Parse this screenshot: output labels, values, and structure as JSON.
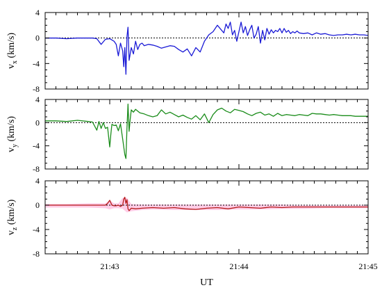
{
  "chart_data": [
    {
      "type": "line",
      "panel": "vx",
      "ylabel_main": "v",
      "ylabel_sub": "x",
      "ylabel_unit": " (km/s)",
      "ylim": [
        -8,
        4
      ],
      "yticks": [
        4,
        0,
        -4,
        -8
      ],
      "xlim": [
        0,
        150
      ],
      "xticks": [
        30,
        90,
        150
      ],
      "xticklabels": [
        "21:43",
        "21:44",
        "21:45"
      ],
      "show_xticklabels": false,
      "zero_line": true,
      "series": [
        {
          "color": "#1a1ad6",
          "x": [
            0,
            5,
            10,
            15,
            20,
            22,
            24,
            26,
            28,
            30,
            32,
            33,
            34,
            35,
            36,
            36.5,
            37,
            37.5,
            38,
            38.5,
            39,
            40,
            41,
            42,
            43,
            44,
            45,
            46,
            48,
            50,
            52,
            54,
            56,
            58,
            60,
            62,
            64,
            66,
            68,
            70,
            72,
            74,
            76,
            78,
            80,
            82,
            83,
            84,
            85,
            86,
            87,
            88,
            89,
            90,
            91,
            92,
            93,
            94,
            95,
            96,
            97,
            98,
            99,
            100,
            101,
            102,
            103,
            104,
            105,
            106,
            107,
            108,
            109,
            110,
            111,
            112,
            113,
            114,
            115,
            116,
            117,
            118,
            120,
            122,
            124,
            126,
            128,
            130,
            132,
            134,
            136,
            138,
            140,
            142,
            144,
            146,
            148,
            150
          ],
          "y": [
            0,
            0,
            -0.1,
            0,
            0,
            0,
            -0.1,
            -1,
            -0.2,
            -0.1,
            -0.5,
            -1,
            -2.8,
            -0.8,
            -2,
            -4.5,
            -1.5,
            -5.7,
            0.2,
            1.7,
            -3.5,
            -1.5,
            -2.5,
            -0.5,
            -1.8,
            -1,
            -0.8,
            -1.2,
            -1,
            -1.1,
            -1.3,
            -1.6,
            -1.4,
            -1.2,
            -1.3,
            -1.8,
            -2.2,
            -1.7,
            -2.8,
            -1.5,
            -2.2,
            -0.5,
            0.5,
            1,
            2,
            1.2,
            0.8,
            2.2,
            1.5,
            2.5,
            0.5,
            1.2,
            -0.5,
            1,
            2.5,
            0.8,
            1.8,
            0.4,
            1.3,
            2,
            0,
            0.6,
            1.8,
            -0.8,
            1.2,
            -0.3,
            1.5,
            0.6,
            1.3,
            0.8,
            1.2,
            1,
            1.5,
            0.8,
            1.5,
            0.9,
            1.2,
            0.7,
            1,
            0.8,
            1.1,
            0.8,
            0.7,
            0.8,
            0.5,
            0.8,
            0.6,
            0.7,
            0.5,
            0.4,
            0.5,
            0.5,
            0.6,
            0.5,
            0.6,
            0.5,
            0.5,
            0.4
          ]
        }
      ]
    },
    {
      "type": "line",
      "panel": "vy",
      "ylabel_main": "v",
      "ylabel_sub": "y",
      "ylabel_unit": " (km/s)",
      "ylim": [
        -8,
        4
      ],
      "yticks": [
        4,
        0,
        -4,
        -8
      ],
      "xlim": [
        0,
        150
      ],
      "xticks": [
        30,
        90,
        150
      ],
      "xticklabels": [
        "21:43",
        "21:44",
        "21:45"
      ],
      "show_xticklabels": false,
      "zero_line": true,
      "series": [
        {
          "color": "#1a8c1a",
          "x": [
            0,
            5,
            10,
            15,
            20,
            22,
            24,
            25,
            26,
            27,
            28,
            29,
            30,
            30.5,
            31,
            32,
            33,
            34,
            35,
            36,
            37,
            37.5,
            38,
            38.5,
            39,
            39.5,
            40,
            41,
            42,
            44,
            46,
            48,
            50,
            52,
            54,
            56,
            58,
            60,
            62,
            64,
            66,
            68,
            70,
            72,
            74,
            76,
            78,
            80,
            82,
            84,
            86,
            88,
            90,
            92,
            94,
            96,
            98,
            100,
            102,
            104,
            106,
            108,
            110,
            112,
            114,
            116,
            118,
            120,
            122,
            124,
            126,
            128,
            130,
            132,
            134,
            136,
            138,
            140,
            142,
            144,
            146,
            148,
            150
          ],
          "y": [
            0.3,
            0.3,
            0.2,
            0.4,
            0.2,
            0.1,
            -1.3,
            0.2,
            -1,
            0,
            -1,
            -0.8,
            -4.2,
            -2,
            -0.3,
            -0.5,
            -0.4,
            -1.4,
            -0.2,
            -2.8,
            -5.5,
            -6.2,
            -1,
            3.2,
            -1.5,
            0.5,
            2.2,
            1.8,
            2.3,
            1.7,
            1.5,
            1.2,
            1,
            1.2,
            2.2,
            1.5,
            1.8,
            1.4,
            1,
            1.3,
            0.9,
            0.6,
            1.2,
            0.5,
            1.5,
            0,
            1.4,
            2.2,
            2.5,
            2,
            1.7,
            2.3,
            2.1,
            1.9,
            1.5,
            1.2,
            1.6,
            1.8,
            1.3,
            1.5,
            1.1,
            1.6,
            1.2,
            1.4,
            1.3,
            1.2,
            1.4,
            1.3,
            1.2,
            1.6,
            1.5,
            1.5,
            1.4,
            1.3,
            1.4,
            1.3,
            1.2,
            1.2,
            1.2,
            1.1,
            1.1,
            1.1,
            1.1
          ]
        }
      ]
    },
    {
      "type": "line",
      "panel": "vz",
      "ylabel_main": "v",
      "ylabel_sub": "z",
      "ylabel_unit": " (km/s)",
      "ylim": [
        -8,
        4
      ],
      "yticks": [
        4,
        0,
        -4,
        -8
      ],
      "xlim": [
        0,
        150
      ],
      "xticks": [
        30,
        90,
        150
      ],
      "xticklabels": [
        "21:43",
        "21:44",
        "21:45"
      ],
      "show_xticklabels": true,
      "xlabel": "UT",
      "zero_line": true,
      "band_color": "#ffc6e3",
      "band_x": [
        0,
        10,
        20,
        28,
        30,
        32,
        34,
        36,
        38,
        40,
        45,
        50,
        60,
        70,
        80,
        90,
        100,
        110,
        120,
        130,
        140,
        150
      ],
      "band_lo": [
        -0.4,
        -0.4,
        -0.4,
        -0.5,
        -0.7,
        -0.5,
        -0.5,
        -0.6,
        -1.2,
        -1.0,
        -0.8,
        -0.7,
        -0.8,
        -0.8,
        -0.8,
        -0.7,
        -0.7,
        -0.6,
        -0.6,
        -0.5,
        -0.5,
        -0.5
      ],
      "band_hi": [
        0.2,
        0.2,
        0.3,
        0.3,
        0.8,
        0.3,
        0.3,
        1.2,
        1.2,
        0.2,
        0.1,
        0.1,
        0.1,
        0.1,
        0.1,
        0.1,
        0.1,
        0.1,
        0.0,
        0.0,
        0.0,
        0.0
      ],
      "series": [
        {
          "color": "#b51a1a",
          "x": [
            0,
            10,
            20,
            26,
            28,
            29,
            30,
            31,
            32,
            33,
            34,
            35,
            36,
            36.5,
            37,
            37.5,
            38,
            38.5,
            39,
            40,
            42,
            45,
            50,
            55,
            60,
            65,
            70,
            75,
            80,
            85,
            90,
            95,
            100,
            105,
            110,
            115,
            120,
            125,
            130,
            135,
            140,
            145,
            150
          ],
          "y": [
            0,
            0,
            0,
            0,
            0,
            0.3,
            0.8,
            0,
            -0.1,
            -0.1,
            0,
            -0.2,
            0,
            1.0,
            1.3,
            0.3,
            0.9,
            -0.6,
            -0.9,
            -0.5,
            -0.6,
            -0.5,
            -0.4,
            -0.5,
            -0.4,
            -0.6,
            -0.7,
            -0.5,
            -0.4,
            -0.6,
            -0.3,
            -0.4,
            -0.5,
            -0.3,
            -0.4,
            -0.3,
            -0.3,
            -0.3,
            -0.3,
            -0.3,
            -0.3,
            -0.3,
            -0.3
          ]
        }
      ]
    }
  ]
}
